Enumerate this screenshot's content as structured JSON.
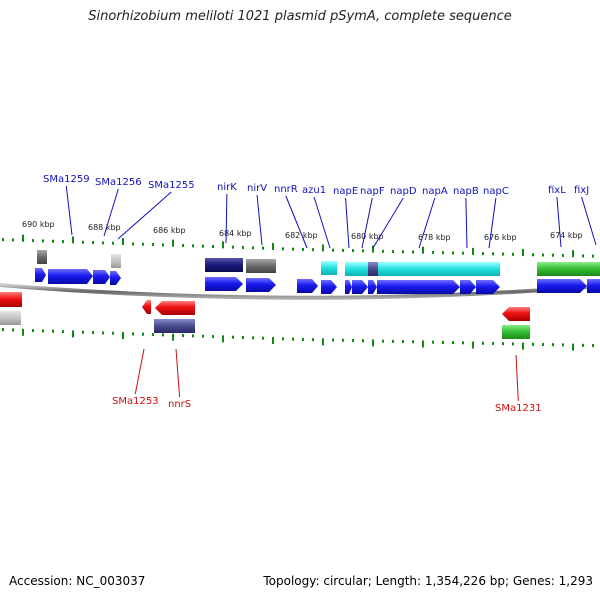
{
  "title": "Sinorhizobium meliloti 1021 plasmid pSymA, complete sequence",
  "footer": {
    "accession": "Accession: NC_003037",
    "summary": "Topology: circular; Length: 1,354,226 bp; Genes: 1,293"
  },
  "colors": {
    "forward_gene": "#1414ee",
    "reverse_gene": "#ee1111",
    "backbone": "#808080",
    "tick": "#118811",
    "forward_label": "#1111bb",
    "reverse_label": "#cc1111",
    "nap_operon": "#22dddd",
    "cog_navy": "#1a1a7a",
    "cog_gray": "#6a6a6a",
    "cog_green": "#33bb33",
    "cog_slate": "#4a4a90"
  },
  "kbp_labels": [
    "690 kbp",
    "688 kbp",
    "686 kbp",
    "684 kbp",
    "682 kbp",
    "680 kbp",
    "678 kbp",
    "676 kbp",
    "674 kbp"
  ],
  "forward_gene_labels": [
    "SMa1259",
    "SMa1256",
    "SMa1255",
    "nirK",
    "nirV",
    "nnrR",
    "azu1",
    "napE",
    "napF",
    "napD",
    "napA",
    "napB",
    "napC",
    "fixL",
    "fixJ"
  ],
  "reverse_gene_labels": [
    "SMa1253",
    "nnrS",
    "SMa1231"
  ]
}
